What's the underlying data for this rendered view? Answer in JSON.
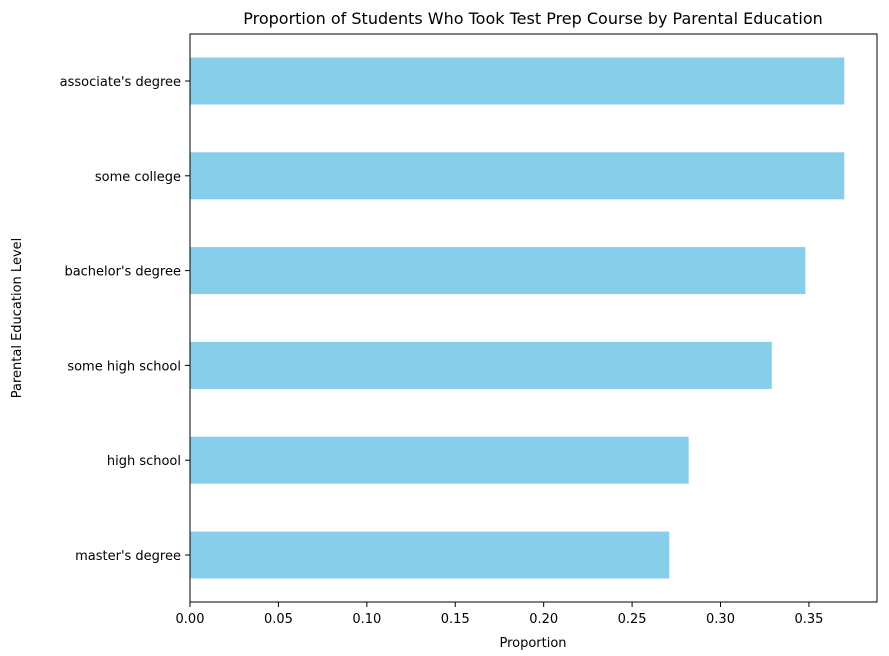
{
  "chart_data": {
    "type": "bar",
    "orientation": "horizontal",
    "title": "Proportion of Students Who Took Test Prep Course by Parental Education",
    "xlabel": "Proportion",
    "ylabel": "Parental Education Level",
    "categories": [
      "associate's degree",
      "some college",
      "bachelor's degree",
      "some high school",
      "high school",
      "master's degree"
    ],
    "values": [
      0.37,
      0.37,
      0.348,
      0.329,
      0.282,
      0.271
    ],
    "xlim": [
      0,
      0.3885
    ],
    "xticks": [
      "0.00",
      "0.05",
      "0.10",
      "0.15",
      "0.20",
      "0.25",
      "0.30",
      "0.35"
    ],
    "bar_color": "#87ceeb",
    "grid": false,
    "legend": "none"
  }
}
